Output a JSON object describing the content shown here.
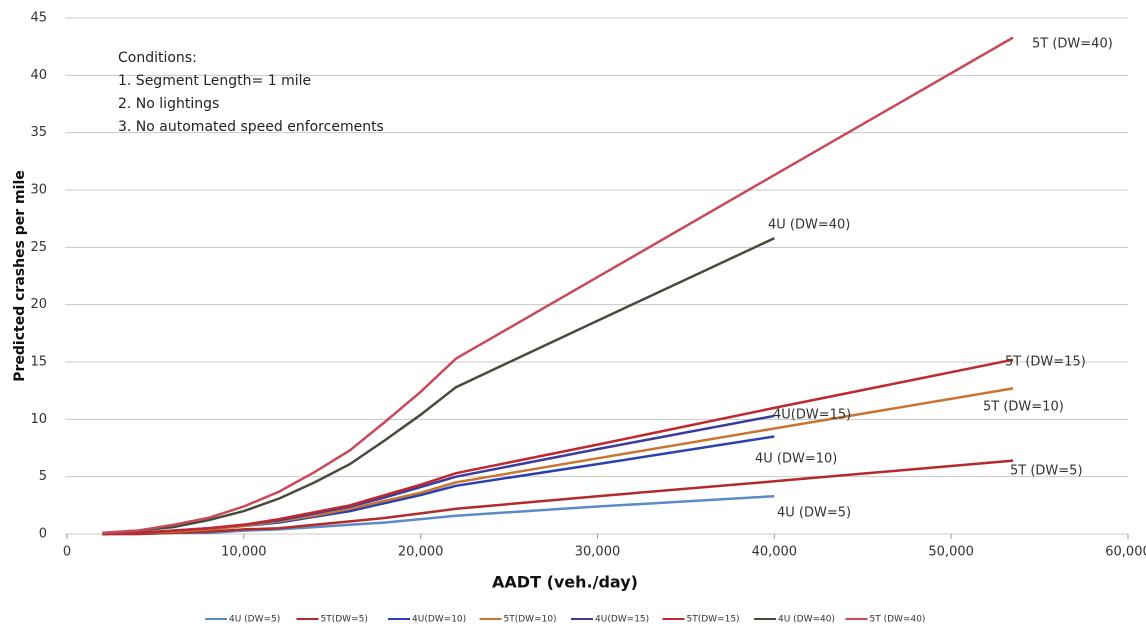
{
  "chart_data": {
    "type": "line",
    "x_label": "AADT (veh./day)",
    "y_label": "Predicted crashes per mile",
    "notes": [
      "Conditions:",
      "1. Segment Length= 1 mile",
      "2. No lightings",
      "3. No automated speed enforcements"
    ],
    "annotations": [
      "5T (DW=40)",
      "4U (DW=40)",
      "5T (DW=15)",
      "4U(DW=15)",
      "5T (DW=10)",
      "4U (DW=10)",
      "5T (DW=5)",
      "4U (DW=5)"
    ],
    "xlim": [
      0,
      60000
    ],
    "xticks": [
      0,
      {
        "value": 10000,
        "label": "10,000"
      },
      {
        "value": 20000,
        "label": "20,000"
      },
      {
        "value": 30000,
        "label": "30,000"
      },
      {
        "value": 40000,
        "label": "40,000"
      },
      {
        "value": 50000,
        "label": "50,000"
      },
      {
        "value": 60000,
        "label": "60,000"
      }
    ],
    "ylim": [
      0,
      45
    ],
    "yticks": [
      0,
      5,
      10,
      15,
      20,
      25,
      30,
      35,
      40,
      45
    ],
    "grid": true,
    "legend": "bottom",
    "x": [
      2000,
      4000,
      6000,
      8000,
      10000,
      12000,
      14000,
      16000,
      18000,
      20000,
      22000,
      30000,
      40000,
      53500
    ],
    "series": [
      {
        "name": "4U (DW=5)",
        "color": "#5b8ac6",
        "values": [
          0.0,
          0.0,
          0.1,
          0.1,
          0.3,
          0.4,
          0.6,
          0.8,
          1.0,
          1.3,
          1.6,
          2.4,
          3.3,
          null
        ]
      },
      {
        "name": "5T(DW=5)",
        "color": "#b22a2a",
        "values": [
          0.0,
          0.0,
          0.1,
          0.2,
          0.4,
          0.5,
          0.8,
          1.1,
          1.4,
          1.8,
          2.2,
          3.3,
          4.6,
          6.4
        ]
      },
      {
        "name": "4U(DW=10)",
        "color": "#2a3fb0",
        "values": [
          0.0,
          0.1,
          0.2,
          0.4,
          0.7,
          1.0,
          1.5,
          2.0,
          2.7,
          3.4,
          4.2,
          6.1,
          8.5,
          null
        ]
      },
      {
        "name": "5T(DW=10)",
        "color": "#c87533",
        "values": [
          0.0,
          0.1,
          0.2,
          0.4,
          0.7,
          1.1,
          1.6,
          2.2,
          2.9,
          3.6,
          4.5,
          6.6,
          9.2,
          12.7
        ]
      },
      {
        "name": "4U(DW=15)",
        "color": "#3c3c9c",
        "values": [
          0.0,
          0.1,
          0.3,
          0.5,
          0.8,
          1.2,
          1.8,
          2.4,
          3.2,
          4.1,
          5.0,
          7.4,
          10.3,
          null
        ]
      },
      {
        "name": "5T(DW=15)",
        "color": "#c0282f",
        "values": [
          0.0,
          0.1,
          0.3,
          0.5,
          0.8,
          1.3,
          1.9,
          2.5,
          3.4,
          4.3,
          5.3,
          7.8,
          11.0,
          15.2
        ]
      },
      {
        "name": "4U (DW=40)",
        "color": "#4a4a3c",
        "values": [
          0.1,
          0.3,
          0.6,
          1.2,
          2.0,
          3.1,
          4.5,
          6.1,
          8.2,
          10.4,
          12.8,
          18.6,
          25.8,
          null
        ]
      },
      {
        "name": "5T (DW=40)",
        "color": "#c84a5a",
        "values": [
          0.1,
          0.3,
          0.8,
          1.4,
          2.4,
          3.7,
          5.4,
          7.3,
          9.8,
          12.4,
          15.3,
          22.4,
          31.3,
          43.3
        ]
      }
    ]
  }
}
